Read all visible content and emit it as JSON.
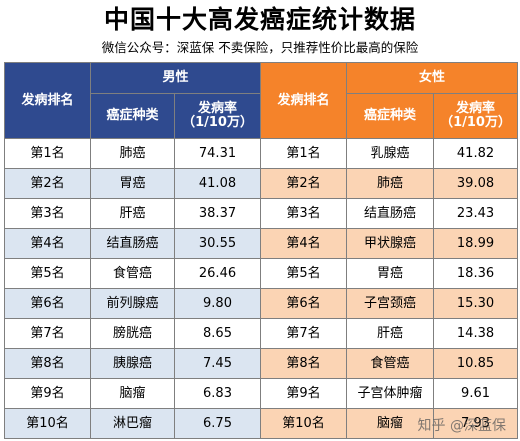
{
  "title": "中国十大高发癌症统计数据",
  "subtitle": "微信公众号：深蓝保     不卖保险，只推荐性价比最高的保险",
  "headers": {
    "rank": "发病排名",
    "male": "男性",
    "female": "女性",
    "cancer_type": "癌症种类",
    "rate_line1": "发病率",
    "rate_line2": "（1/10万）"
  },
  "rows": [
    {
      "rank": "第1名",
      "male_type": "肺癌",
      "male_rate": "74.31",
      "female_rank": "第1名",
      "female_type": "乳腺癌",
      "female_rate": "41.82"
    },
    {
      "rank": "第2名",
      "male_type": "胃癌",
      "male_rate": "41.08",
      "female_rank": "第2名",
      "female_type": "肺癌",
      "female_rate": "39.08"
    },
    {
      "rank": "第3名",
      "male_type": "肝癌",
      "male_rate": "38.37",
      "female_rank": "第3名",
      "female_type": "结直肠癌",
      "female_rate": "23.43"
    },
    {
      "rank": "第4名",
      "male_type": "结直肠癌",
      "male_rate": "30.55",
      "female_rank": "第4名",
      "female_type": "甲状腺癌",
      "female_rate": "18.99"
    },
    {
      "rank": "第5名",
      "male_type": "食管癌",
      "male_rate": "26.46",
      "female_rank": "第5名",
      "female_type": "胃癌",
      "female_rate": "18.36"
    },
    {
      "rank": "第6名",
      "male_type": "前列腺癌",
      "male_rate": "9.80",
      "female_rank": "第6名",
      "female_type": "子宫颈癌",
      "female_rate": "15.30"
    },
    {
      "rank": "第7名",
      "male_type": "膀胱癌",
      "male_rate": "8.65",
      "female_rank": "第7名",
      "female_type": "肝癌",
      "female_rate": "14.38"
    },
    {
      "rank": "第8名",
      "male_type": "胰腺癌",
      "male_rate": "7.45",
      "female_rank": "第8名",
      "female_type": "食管癌",
      "female_rate": "10.85"
    },
    {
      "rank": "第9名",
      "male_type": "脑瘤",
      "male_rate": "6.83",
      "female_rank": "第9名",
      "female_type": "子宫体肿瘤",
      "female_rate": "9.61"
    },
    {
      "rank": "第10名",
      "male_type": "淋巴瘤",
      "male_rate": "6.75",
      "female_rank": "第10名",
      "female_type": "脑瘤",
      "female_rate": "7.93"
    }
  ],
  "watermark": "知乎 @深蓝保",
  "colors": {
    "male_header": "#2f4a8f",
    "female_header": "#f5832a",
    "male_alt_row": "#dbe5f1",
    "female_alt_row": "#fbd4b4"
  }
}
